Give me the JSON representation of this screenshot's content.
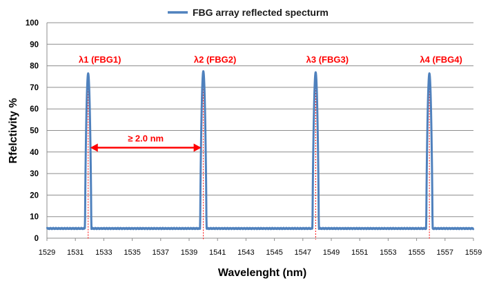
{
  "chart_data": {
    "type": "line",
    "title": "",
    "xlabel": "Wavelenght (nm)",
    "ylabel": "Rfelctivity %",
    "xlim": [
      1529,
      1559
    ],
    "ylim": [
      0,
      100
    ],
    "x_ticks": [
      "1529",
      "1531",
      "1533",
      "1535",
      "1537",
      "1539",
      "1541",
      "1543",
      "1545",
      "1547",
      "1549",
      "1551",
      "1553",
      "1555",
      "1557",
      "1559"
    ],
    "y_ticks": [
      "0",
      "10",
      "20",
      "30",
      "40",
      "50",
      "60",
      "70",
      "80",
      "90",
      "100"
    ],
    "grid": "horizontal",
    "legend": {
      "position": "top-center",
      "entries": [
        "FBG array reflected specturm"
      ]
    },
    "series": [
      {
        "name": "FBG array reflected specturm",
        "color": "#4f81bd",
        "baseline": 4.5,
        "peaks": [
          {
            "label": "λ1 (FBG1)",
            "center": 1531.9,
            "reflectivity": 76.5
          },
          {
            "label": "λ2 (FBG2)",
            "center": 1540.0,
            "reflectivity": 77.5
          },
          {
            "label": "λ3 (FBG3)",
            "center": 1547.9,
            "reflectivity": 77.0
          },
          {
            "label": "λ4 (FBG4)",
            "center": 1555.9,
            "reflectivity": 76.5
          }
        ]
      }
    ],
    "annotations": {
      "peak_label_color": "#ff0000",
      "spacing": {
        "text": "≥ 2.0 nm",
        "from": 1531.9,
        "to": 1540.0,
        "y": 42,
        "color": "#ff0000"
      }
    }
  }
}
